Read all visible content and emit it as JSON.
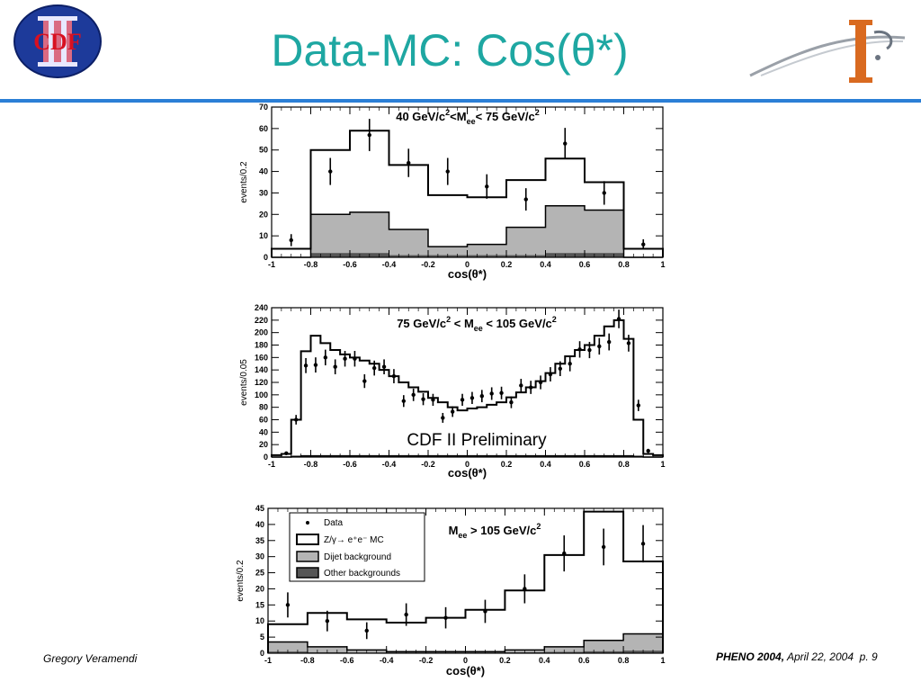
{
  "header": {
    "title": "Data-MC: Cos(θ*)",
    "logo_left_text": "CDF",
    "accent_color": "#1ea7a2",
    "rule_color": "#2b7fd6"
  },
  "footer": {
    "author": "Gregory Veramendi",
    "conference": "PHENO 2004,",
    "date": "April 22, 2004",
    "page": "p. 9"
  },
  "chart_data": [
    {
      "type": "histogram",
      "title": "40 GeV/c² <M ee < 75 GeV/c²",
      "title_parts": {
        "a": "40 GeV/c",
        "sup1": "2",
        "b": "<M",
        "sub": "ee",
        "c": "< 75 GeV/c",
        "sup2": "2"
      },
      "xlabel": "cos(θ*)",
      "ylabel": "events/0.2",
      "xlim": [
        -1,
        1
      ],
      "ylim": [
        0,
        70
      ],
      "xticks": [
        "-1",
        "-0.8",
        "-0.6",
        "-0.4",
        "-0.2",
        "0",
        "0.2",
        "0.4",
        "0.6",
        "0.8",
        "1"
      ],
      "yticks": [
        "0",
        "10",
        "20",
        "30",
        "40",
        "50",
        "60",
        "70"
      ],
      "bin_edges": [
        -1,
        -0.8,
        -0.6,
        -0.4,
        -0.2,
        0,
        0.2,
        0.4,
        0.6,
        0.8,
        1
      ],
      "mc": [
        4,
        50,
        59,
        43,
        29,
        28,
        36,
        46,
        35,
        4
      ],
      "dijet": [
        0,
        20,
        21,
        13,
        5,
        6,
        14,
        24,
        22,
        0
      ],
      "other": [
        0,
        2,
        2,
        1,
        1,
        1,
        1,
        2,
        2,
        0
      ],
      "data": {
        "x": [
          -0.9,
          -0.7,
          -0.5,
          -0.3,
          -0.1,
          0.1,
          0.3,
          0.5,
          0.7,
          0.9
        ],
        "y": [
          8,
          40,
          57,
          44,
          40,
          33,
          27,
          53,
          30,
          6
        ],
        "err": [
          2.8,
          6.3,
          7.5,
          6.6,
          6.3,
          5.7,
          5.2,
          7.3,
          5.5,
          2.4
        ]
      }
    },
    {
      "type": "histogram",
      "title": "75 GeV/c² < M ee < 105 GeV/c²",
      "title_parts": {
        "a": "75 GeV/c",
        "sup1": "2",
        "b": " < M",
        "sub": "ee",
        "c": " < 105 GeV/c",
        "sup2": "2"
      },
      "annotation": "CDF II Preliminary",
      "xlabel": "cos(θ*)",
      "ylabel": "events/0.05",
      "xlim": [
        -1,
        1
      ],
      "ylim": [
        0,
        240
      ],
      "xticks": [
        "-1",
        "-0.8",
        "-0.6",
        "-0.4",
        "-0.2",
        "0",
        "0.2",
        "0.4",
        "0.6",
        "0.8",
        "1"
      ],
      "yticks": [
        "0",
        "20",
        "40",
        "60",
        "80",
        "100",
        "120",
        "140",
        "160",
        "180",
        "200",
        "220",
        "240"
      ],
      "bin_edges": [
        -1,
        -0.95,
        -0.9,
        -0.85,
        -0.8,
        -0.75,
        -0.7,
        -0.65,
        -0.6,
        -0.55,
        -0.5,
        -0.45,
        -0.4,
        -0.35,
        -0.3,
        -0.25,
        -0.2,
        -0.15,
        -0.1,
        -0.05,
        0,
        0.05,
        0.1,
        0.15,
        0.2,
        0.25,
        0.3,
        0.35,
        0.4,
        0.45,
        0.5,
        0.55,
        0.6,
        0.65,
        0.7,
        0.75,
        0.8,
        0.85,
        0.9,
        0.95,
        1
      ],
      "mc": [
        3,
        5,
        60,
        170,
        195,
        183,
        172,
        165,
        160,
        155,
        150,
        140,
        130,
        120,
        112,
        105,
        95,
        88,
        80,
        75,
        78,
        80,
        84,
        88,
        96,
        104,
        112,
        122,
        135,
        150,
        162,
        172,
        180,
        195,
        210,
        220,
        190,
        60,
        5,
        3
      ],
      "dijet": [
        0,
        0,
        1,
        2,
        2,
        2,
        2,
        2,
        2,
        2,
        2,
        2,
        2,
        2,
        2,
        2,
        2,
        2,
        2,
        2,
        2,
        2,
        2,
        2,
        2,
        2,
        2,
        2,
        2,
        2,
        2,
        2,
        2,
        2,
        2,
        2,
        2,
        1,
        0,
        0
      ],
      "other": [
        0,
        0,
        1,
        1,
        1,
        1,
        1,
        1,
        1,
        1,
        1,
        1,
        1,
        1,
        1,
        1,
        1,
        1,
        1,
        1,
        1,
        1,
        1,
        1,
        1,
        1,
        1,
        1,
        1,
        1,
        1,
        1,
        1,
        1,
        1,
        1,
        1,
        1,
        0,
        0
      ],
      "data": {
        "x": [
          -0.925,
          -0.875,
          -0.825,
          -0.775,
          -0.725,
          -0.675,
          -0.625,
          -0.575,
          -0.525,
          -0.475,
          -0.425,
          -0.375,
          -0.325,
          -0.275,
          -0.225,
          -0.175,
          -0.125,
          -0.075,
          -0.025,
          0.025,
          0.075,
          0.125,
          0.175,
          0.225,
          0.275,
          0.325,
          0.375,
          0.425,
          0.475,
          0.525,
          0.575,
          0.625,
          0.675,
          0.725,
          0.775,
          0.825,
          0.875,
          0.925
        ],
        "y": [
          6,
          60,
          147,
          148,
          160,
          145,
          158,
          158,
          122,
          143,
          145,
          130,
          90,
          100,
          93,
          92,
          63,
          73,
          92,
          95,
          98,
          102,
          103,
          88,
          115,
          112,
          120,
          133,
          142,
          150,
          173,
          172,
          178,
          185,
          222,
          183,
          83,
          10
        ],
        "err": [
          2.4,
          7.7,
          12.1,
          12.2,
          12.6,
          12.0,
          12.6,
          12.6,
          11.0,
          12.0,
          12.0,
          11.4,
          9.5,
          10.0,
          9.6,
          9.6,
          7.9,
          8.5,
          9.6,
          9.7,
          9.9,
          10.1,
          10.1,
          9.4,
          10.7,
          10.6,
          11.0,
          11.5,
          11.9,
          12.2,
          13.2,
          13.1,
          13.3,
          13.6,
          14.9,
          13.5,
          9.1,
          3.2
        ]
      }
    },
    {
      "type": "histogram",
      "title": "M ee > 105 GeV/c²",
      "title_parts": {
        "a": "M",
        "sub": "ee",
        "c": " > 105 GeV/c",
        "sup2": "2"
      },
      "xlabel": "cos(θ*)",
      "ylabel": "events/0.2",
      "xlim": [
        -1,
        1
      ],
      "ylim": [
        0,
        45
      ],
      "xticks": [
        "-1",
        "-0.8",
        "-0.6",
        "-0.4",
        "-0.2",
        "0",
        "0.2",
        "0.4",
        "0.6",
        "0.8",
        "1"
      ],
      "yticks": [
        "0",
        "5",
        "10",
        "15",
        "20",
        "25",
        "30",
        "35",
        "40",
        "45"
      ],
      "legend": {
        "position": "top-left",
        "entries": [
          "Data",
          "Z/γ→ e⁺e⁻ MC",
          "Dijet background",
          "Other backgrounds"
        ]
      },
      "bin_edges": [
        -1,
        -0.8,
        -0.6,
        -0.4,
        -0.2,
        0,
        0.2,
        0.4,
        0.6,
        0.8,
        1
      ],
      "mc": [
        9,
        12.5,
        10.5,
        9.5,
        11,
        13.5,
        19.5,
        30.5,
        44,
        28.5
      ],
      "dijet": [
        3.5,
        2,
        1,
        0.5,
        0.5,
        0.5,
        1,
        2,
        4,
        6
      ],
      "other": [
        0.5,
        0.3,
        0.2,
        0.2,
        0.2,
        0.2,
        0.3,
        0.4,
        0.6,
        0.8
      ],
      "data": {
        "x": [
          -0.9,
          -0.7,
          -0.5,
          -0.3,
          -0.1,
          0.1,
          0.3,
          0.5,
          0.7,
          0.9
        ],
        "y": [
          15,
          10,
          7,
          12,
          11,
          13,
          20,
          31,
          33,
          34
        ],
        "err": [
          3.9,
          3.2,
          2.6,
          3.5,
          3.3,
          3.6,
          4.5,
          5.6,
          5.7,
          5.8
        ]
      }
    }
  ]
}
